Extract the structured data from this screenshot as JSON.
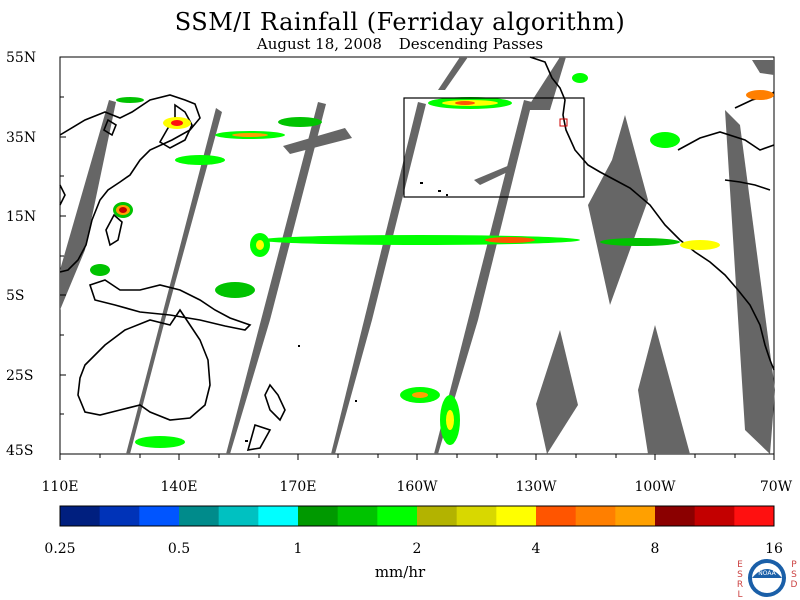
{
  "title": "SSM/I Rainfall (Ferriday algorithm)",
  "subtitle_date": "August 18, 2008",
  "subtitle_pass": "Descending Passes",
  "lat_labels": [
    "55N",
    "35N",
    "15N",
    "5S",
    "25S",
    "45S"
  ],
  "lon_labels": [
    "110E",
    "140E",
    "170E",
    "160W",
    "130W",
    "100W",
    "70W"
  ],
  "colorbar_labels": [
    "0.25",
    "0.5",
    "1",
    "2",
    "4",
    "8",
    "16"
  ],
  "colorbar_colors": [
    "#001f7f",
    "#0033b8",
    "#0055ff",
    "#008b8b",
    "#00c1c1",
    "#00ffff",
    "#009900",
    "#00c300",
    "#00ff00",
    "#b3b300",
    "#d8d800",
    "#ffff00",
    "#ff5500",
    "#ff7f00",
    "#ffa000",
    "#8b0000",
    "#c30000",
    "#ff1010"
  ],
  "units": "mm/hr",
  "logo": {
    "left_letters": [
      "E",
      "S",
      "R",
      "L"
    ],
    "right_letters": [
      "P",
      "S",
      "D"
    ],
    "emblem_text": "NOAA"
  },
  "colors": {
    "swath_gap": "#666666",
    "box_highlight": "#cc0000"
  }
}
